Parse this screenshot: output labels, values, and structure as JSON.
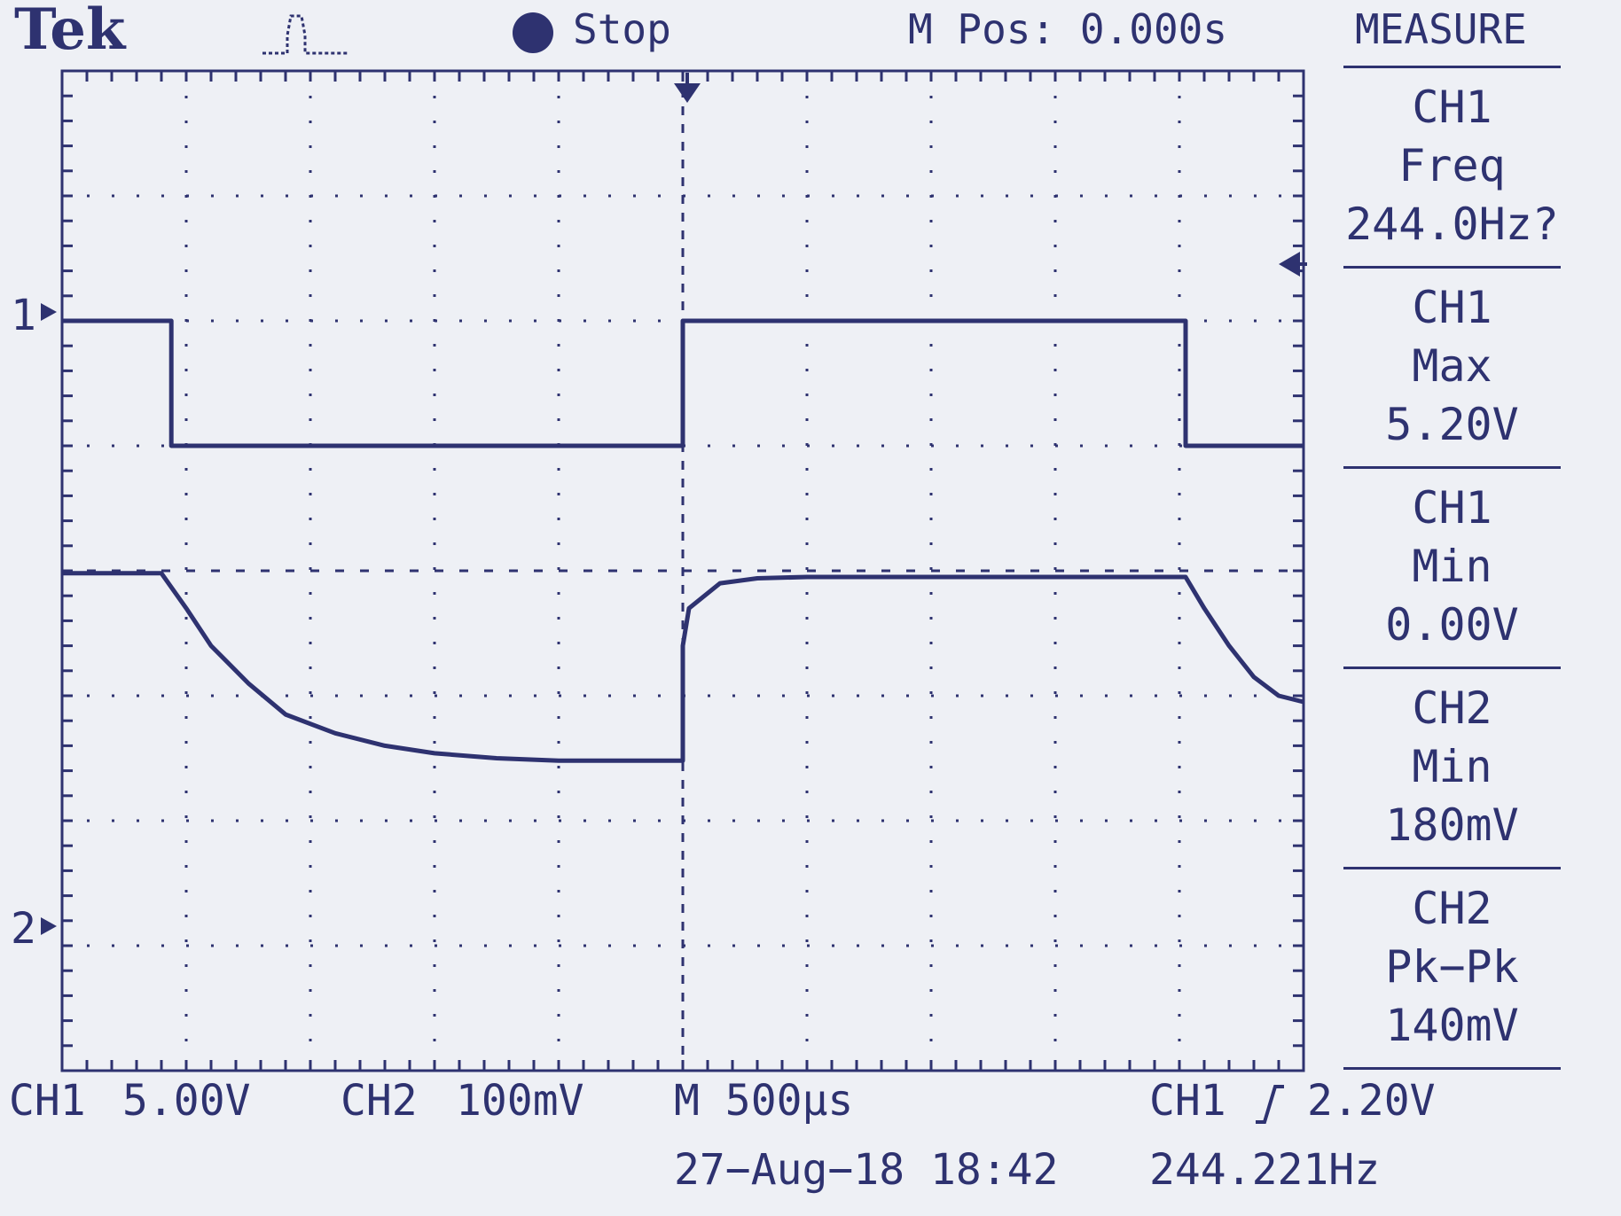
{
  "header": {
    "brand": "Tek",
    "acquisition_state": "Stop",
    "horizontal_position": "M Pos: 0.000s",
    "menu_title": "MEASURE"
  },
  "markers": {
    "ch1_ground": "1",
    "ch2_ground": "2"
  },
  "measurements": [
    {
      "source": "CH1",
      "type": "Freq",
      "value": "244.0Hz?"
    },
    {
      "source": "CH1",
      "type": "Max",
      "value": "5.20V"
    },
    {
      "source": "CH1",
      "type": "Min",
      "value": "0.00V"
    },
    {
      "source": "CH2",
      "type": "Min",
      "value": "180mV"
    },
    {
      "source": "CH2",
      "type": "Pk−Pk",
      "value": "140mV"
    }
  ],
  "footer": {
    "ch1_label": "CH1",
    "ch1_scale": "5.00V",
    "ch2_label": "CH2",
    "ch2_scale": "100mV",
    "timebase": "M 500µs",
    "trigger_source": "CH1",
    "trigger_slope_icon": "rising-edge-icon",
    "trigger_level": "2.20V",
    "date_time": "27−Aug−18 18:42",
    "trigger_frequency": "244.221Hz"
  },
  "colors": {
    "trace": "#2e3270",
    "screen_bg": "#eef0f5",
    "grid": "#2e3270"
  },
  "chart_data": {
    "type": "line",
    "grid": true,
    "x_divisions": 10,
    "y_divisions": 8,
    "units": "divisions",
    "series": [
      {
        "name": "CH1",
        "x": [
          -5,
          -4.12,
          -4.12,
          0,
          0,
          4.05,
          4.05,
          5
        ],
        "y": [
          2.0,
          2.0,
          1.0,
          1.0,
          2.0,
          2.0,
          1.0,
          1.0
        ]
      },
      {
        "name": "CH2",
        "x": [
          -5,
          -4.2,
          -4.0,
          -3.8,
          -3.5,
          -3.2,
          -2.8,
          -2.4,
          -2.0,
          -1.5,
          -1.0,
          0.0,
          0.0,
          0.05,
          0.3,
          0.6,
          1.0,
          2.0,
          3.0,
          4.0,
          4.05,
          4.2,
          4.4,
          4.6,
          4.8,
          5.0
        ],
        "y": [
          -0.02,
          -0.02,
          -0.3,
          -0.6,
          -0.9,
          -1.15,
          -1.3,
          -1.4,
          -1.46,
          -1.5,
          -1.52,
          -1.52,
          -0.6,
          -0.3,
          -0.1,
          -0.06,
          -0.05,
          -0.05,
          -0.05,
          -0.05,
          -0.05,
          -0.3,
          -0.6,
          -0.85,
          -1.0,
          -1.05
        ]
      }
    ]
  }
}
